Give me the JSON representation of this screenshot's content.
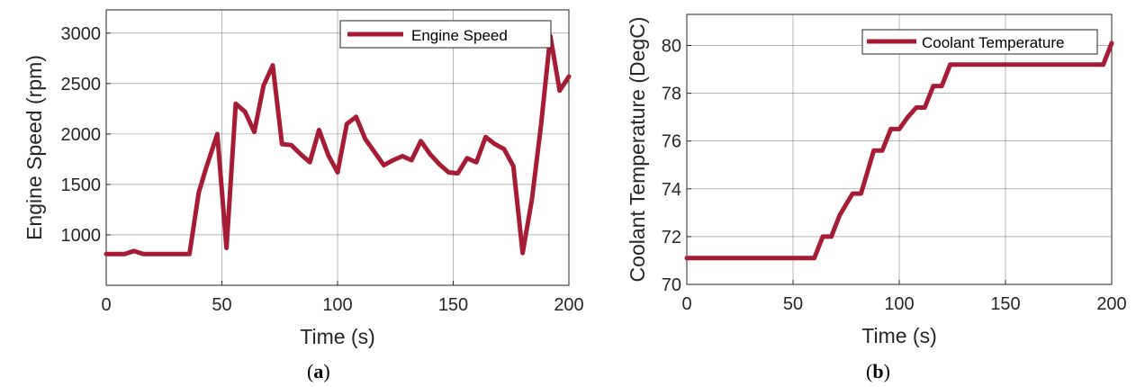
{
  "chart_data": [
    {
      "type": "line",
      "panel_label": "a",
      "xlabel": "Time (s)",
      "ylabel": "Engine Speed (rpm)",
      "xlim": [
        0,
        200
      ],
      "ylim": [
        500,
        3230
      ],
      "xticks": [
        "0",
        "50",
        "100",
        "150",
        "200"
      ],
      "yticks": [
        "1000",
        "1500",
        "2000",
        "2500",
        "3000"
      ],
      "grid": true,
      "legend_position": "top-right",
      "color": "#a51c34",
      "series": [
        {
          "name": "Engine Speed",
          "x": [
            0,
            8,
            12,
            16,
            25,
            36,
            40,
            43,
            48,
            52,
            56,
            60,
            64,
            68,
            72,
            76,
            80,
            84,
            88,
            92,
            96,
            100,
            104,
            108,
            112,
            120,
            124,
            128,
            132,
            136,
            140,
            144,
            148,
            152,
            156,
            160,
            164,
            168,
            172,
            176,
            180,
            184,
            188,
            192,
            196,
            200
          ],
          "y": [
            810,
            810,
            840,
            810,
            810,
            810,
            1420,
            1650,
            2000,
            870,
            2300,
            2220,
            2020,
            2480,
            2680,
            1900,
            1890,
            1800,
            1720,
            2040,
            1790,
            1620,
            2100,
            2170,
            1950,
            1690,
            1740,
            1780,
            1740,
            1930,
            1800,
            1700,
            1620,
            1610,
            1760,
            1720,
            1970,
            1900,
            1850,
            1680,
            820,
            1350,
            2100,
            2970,
            2430,
            2570
          ]
        }
      ]
    },
    {
      "type": "line",
      "panel_label": "b",
      "xlabel": "Time (s)",
      "ylabel": "Coolant Temperature (DegC)",
      "xlim": [
        0,
        200
      ],
      "ylim": [
        70,
        81.3
      ],
      "xticks": [
        "0",
        "50",
        "100",
        "150",
        "200"
      ],
      "yticks": [
        "70",
        "72",
        "74",
        "76",
        "78",
        "80"
      ],
      "grid": true,
      "legend_position": "top-right",
      "color": "#a51c34",
      "series": [
        {
          "name": "Coolant Temperature",
          "x": [
            0,
            60,
            64,
            68,
            72,
            78,
            82,
            88,
            92,
            96,
            100,
            104,
            108,
            112,
            116,
            120,
            124,
            196,
            200
          ],
          "y": [
            71.1,
            71.1,
            72.0,
            72.0,
            72.9,
            73.8,
            73.8,
            75.6,
            75.6,
            76.5,
            76.5,
            77.0,
            77.4,
            77.4,
            78.3,
            78.3,
            79.2,
            79.2,
            80.1
          ]
        }
      ]
    }
  ]
}
